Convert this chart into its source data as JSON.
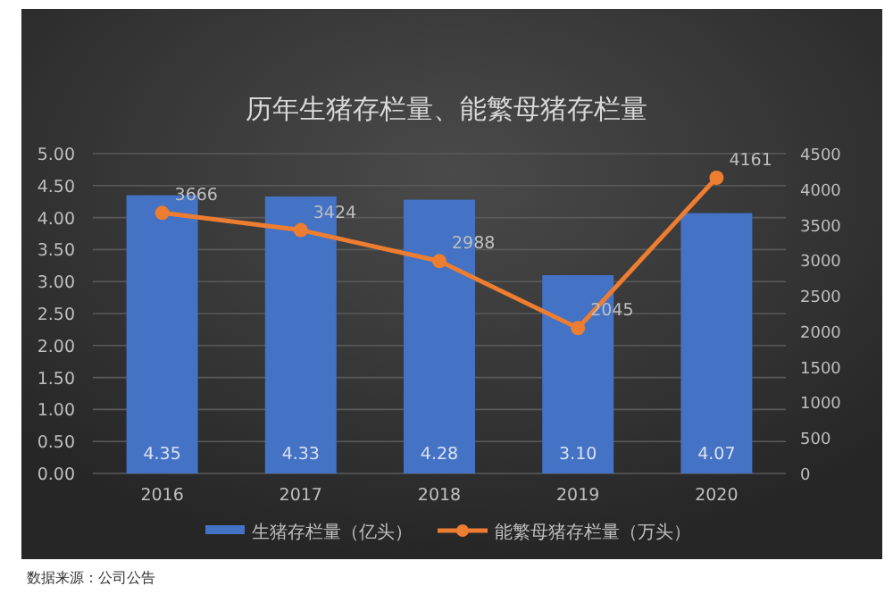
{
  "chart_data": {
    "type": "bar",
    "title": "历年生猪存栏量、能繁母猪存栏量",
    "categories": [
      "2016",
      "2017",
      "2018",
      "2019",
      "2020"
    ],
    "series": [
      {
        "name": "生猪存栏量（亿头）",
        "color": "#4472c4",
        "values": [
          4.35,
          4.33,
          4.28,
          3.1,
          4.07
        ],
        "value_labels": [
          "4.35",
          "4.33",
          "4.28",
          "3.10",
          "4.07"
        ]
      },
      {
        "name": "能繁母猪存栏量（万头）",
        "type": "line",
        "axis": "y2",
        "color": "#ed7d31",
        "marker": "circle",
        "values": [
          3666,
          3424,
          2988,
          2045,
          4161
        ]
      }
    ],
    "ylim": [
      0,
      5
    ],
    "yticks": [
      {
        "value": 0,
        "label": "0.00"
      },
      {
        "value": 0.5,
        "label": "0.50"
      },
      {
        "value": 1,
        "label": "1.00"
      },
      {
        "value": 1.5,
        "label": "1.50"
      },
      {
        "value": 2,
        "label": "2.00"
      },
      {
        "value": 2.5,
        "label": "2.50"
      },
      {
        "value": 3,
        "label": "3.00"
      },
      {
        "value": 3.5,
        "label": "3.50"
      },
      {
        "value": 4,
        "label": "4.00"
      },
      {
        "value": 4.5,
        "label": "4.50"
      },
      {
        "value": 5,
        "label": "5.00"
      }
    ],
    "y2lim": [
      0,
      4500
    ],
    "y2ticks": [
      0,
      500,
      1000,
      1500,
      2000,
      2500,
      3000,
      3500,
      4000,
      4500
    ],
    "grid": "y",
    "legend": "bottom",
    "data_labels": true,
    "annotations": [
      "数据来源：公司公告"
    ]
  }
}
